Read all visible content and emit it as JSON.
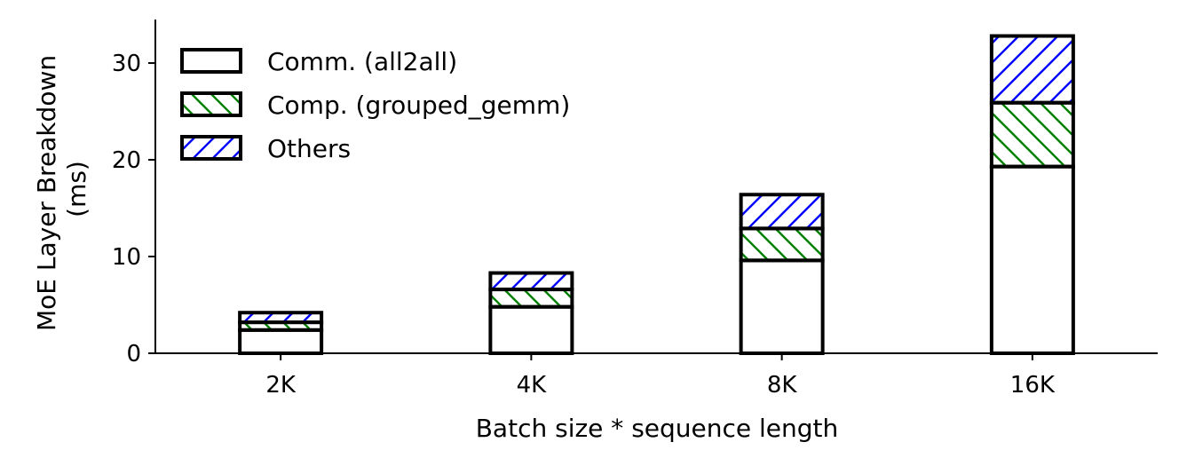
{
  "chart_data": {
    "type": "bar",
    "stacked": true,
    "categories": [
      "2K",
      "4K",
      "8K",
      "16K"
    ],
    "series": [
      {
        "name": "Comm. (all2all)",
        "values": [
          2.4,
          4.8,
          9.6,
          19.3
        ],
        "hatch": "none",
        "color": "#000000"
      },
      {
        "name": "Comp. (grouped_gemm)",
        "values": [
          0.8,
          1.8,
          3.3,
          6.6
        ],
        "hatch": "backslash",
        "color": "#008000"
      },
      {
        "name": "Others",
        "values": [
          1.0,
          1.7,
          3.5,
          6.9
        ],
        "hatch": "slash",
        "color": "#0000ff"
      }
    ],
    "title": "",
    "xlabel": "Batch size * sequence length",
    "ylabel": "MoE Layer Breakdown\n(ms)",
    "ylim": [
      0,
      34.5
    ],
    "yticks": [
      0,
      10,
      20,
      30
    ],
    "grid": false,
    "legend_position": "top-left"
  }
}
